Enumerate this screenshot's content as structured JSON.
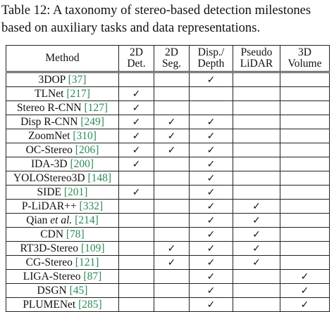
{
  "caption": {
    "line1": "Table 12: A taxonomy of stereo-based detection milestones",
    "line2": "based on auxiliary tasks and data representations."
  },
  "table": {
    "headers": [
      {
        "l1": "Method",
        "l2": ""
      },
      {
        "l1": "2D",
        "l2": "Det."
      },
      {
        "l1": "2D",
        "l2": "Seg."
      },
      {
        "l1": "Disp./",
        "l2": "Depth"
      },
      {
        "l1": "Pseudo",
        "l2": "LiDAR"
      },
      {
        "l1": "3D",
        "l2": "Volume"
      }
    ],
    "check_symbol": "✓",
    "rows": [
      {
        "name": "3DOP ",
        "ref": "[37]",
        "marks": [
          false,
          false,
          true,
          false,
          false
        ]
      },
      {
        "name": "TLNet ",
        "ref": "[217]",
        "marks": [
          true,
          false,
          false,
          false,
          false
        ]
      },
      {
        "name": "Stereo R-CNN ",
        "ref": "[127]",
        "marks": [
          true,
          false,
          false,
          false,
          false
        ]
      },
      {
        "name": "Disp R-CNN ",
        "ref": "[249]",
        "marks": [
          true,
          true,
          true,
          false,
          false
        ]
      },
      {
        "name": "ZoomNet ",
        "ref": "[310]",
        "marks": [
          true,
          true,
          true,
          false,
          false
        ]
      },
      {
        "name": "OC-Stereo ",
        "ref": "[206]",
        "marks": [
          true,
          true,
          true,
          false,
          false
        ]
      },
      {
        "name": "IDA-3D ",
        "ref": "[200]",
        "marks": [
          true,
          false,
          true,
          false,
          false
        ]
      },
      {
        "name": "YOLOStereo3D ",
        "ref": "[148]",
        "marks": [
          false,
          false,
          true,
          false,
          false
        ]
      },
      {
        "name": "SIDE ",
        "ref": "[201]",
        "marks": [
          true,
          false,
          true,
          false,
          false
        ]
      },
      {
        "name": "P-LiDAR++ ",
        "ref": "[332]",
        "marks": [
          false,
          false,
          true,
          true,
          false
        ]
      },
      {
        "name": "Qian et al. ",
        "ref": "[214]",
        "marks": [
          false,
          false,
          true,
          true,
          false
        ]
      },
      {
        "name": "CDN ",
        "ref": "[78]",
        "marks": [
          false,
          false,
          true,
          true,
          false
        ]
      },
      {
        "name": "RT3D-Stereo ",
        "ref": "[109]",
        "marks": [
          false,
          true,
          true,
          true,
          false
        ]
      },
      {
        "name": "CG-Stereo ",
        "ref": "[121]",
        "marks": [
          false,
          true,
          true,
          true,
          false
        ]
      },
      {
        "name": "LIGA-Stereo ",
        "ref": "[87]",
        "marks": [
          false,
          false,
          true,
          false,
          true
        ]
      },
      {
        "name": "DSGN ",
        "ref": "[45]",
        "marks": [
          false,
          false,
          true,
          false,
          true
        ]
      },
      {
        "name": "PLUMENet ",
        "ref": "[285]",
        "marks": [
          false,
          false,
          true,
          false,
          true
        ]
      }
    ]
  }
}
